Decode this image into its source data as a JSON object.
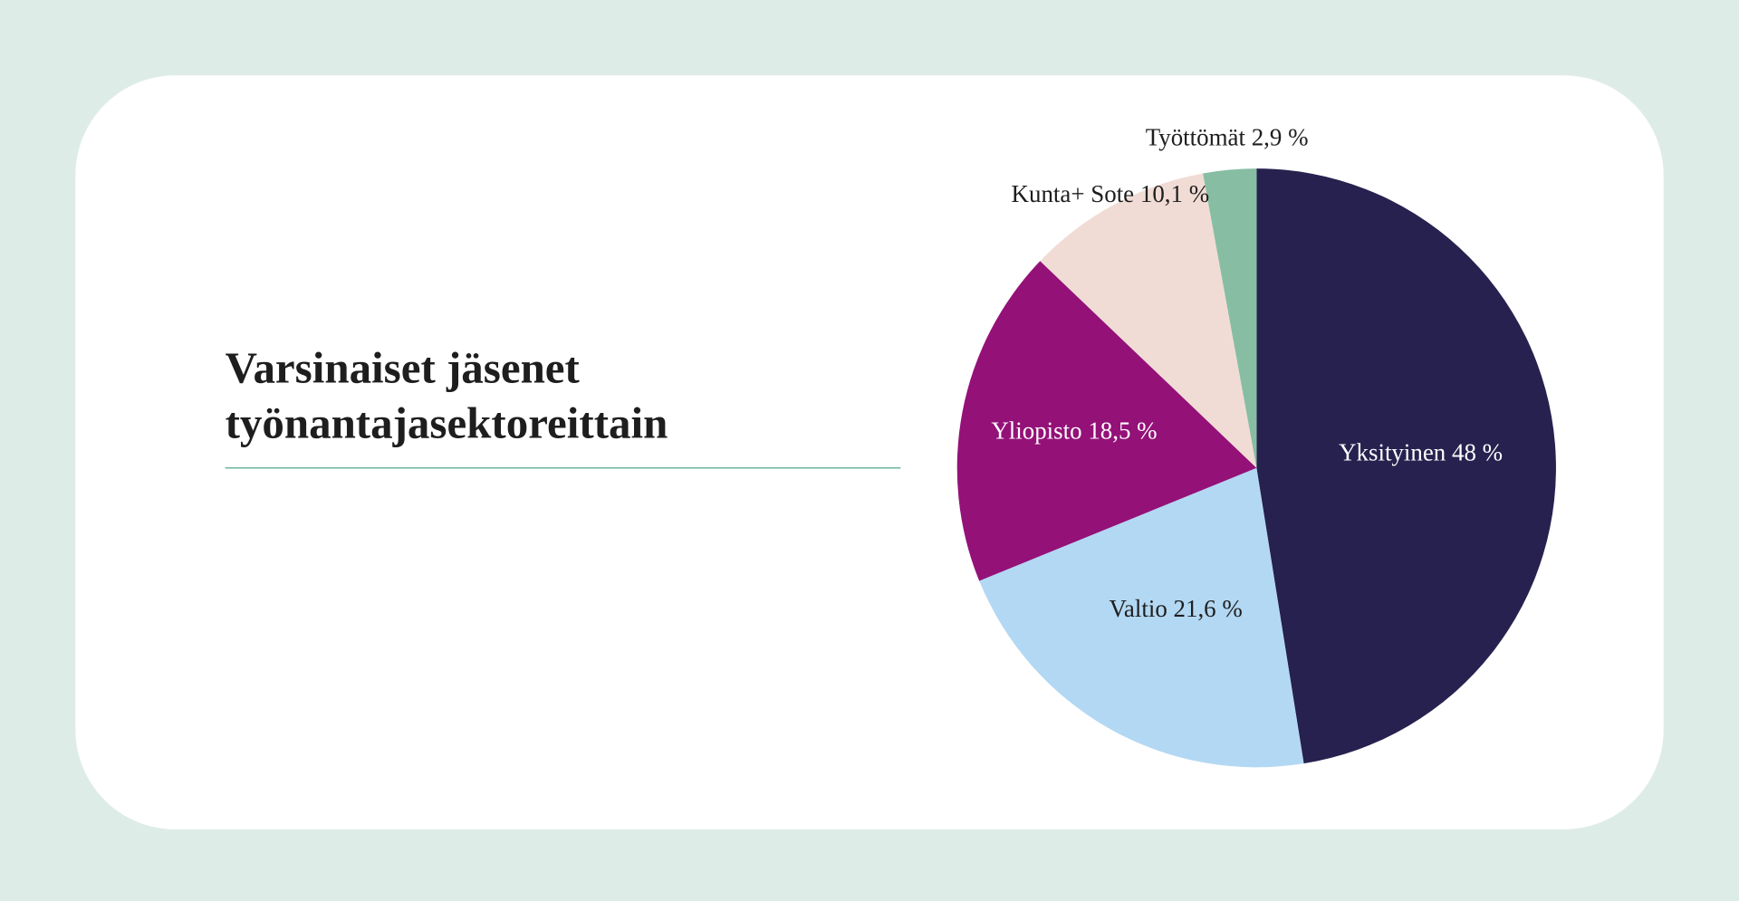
{
  "chart_data": {
    "type": "pie",
    "title": [
      "Varsinaiset jäsenet",
      "työnantajasektoreittain"
    ],
    "categories": [
      "Yksityinen",
      "Valtio",
      "Yliopisto",
      "Kunta+ Sote",
      "Työttömät"
    ],
    "values": [
      48,
      21.6,
      18.5,
      10.1,
      2.9
    ],
    "value_labels": [
      "48 %",
      "21,6 %",
      "18,5 %",
      "10,1 %",
      "2,9 %"
    ],
    "colors": [
      "#27214f",
      "#b3d8f3",
      "#941178",
      "#f1dcd5",
      "#87bea3"
    ]
  }
}
